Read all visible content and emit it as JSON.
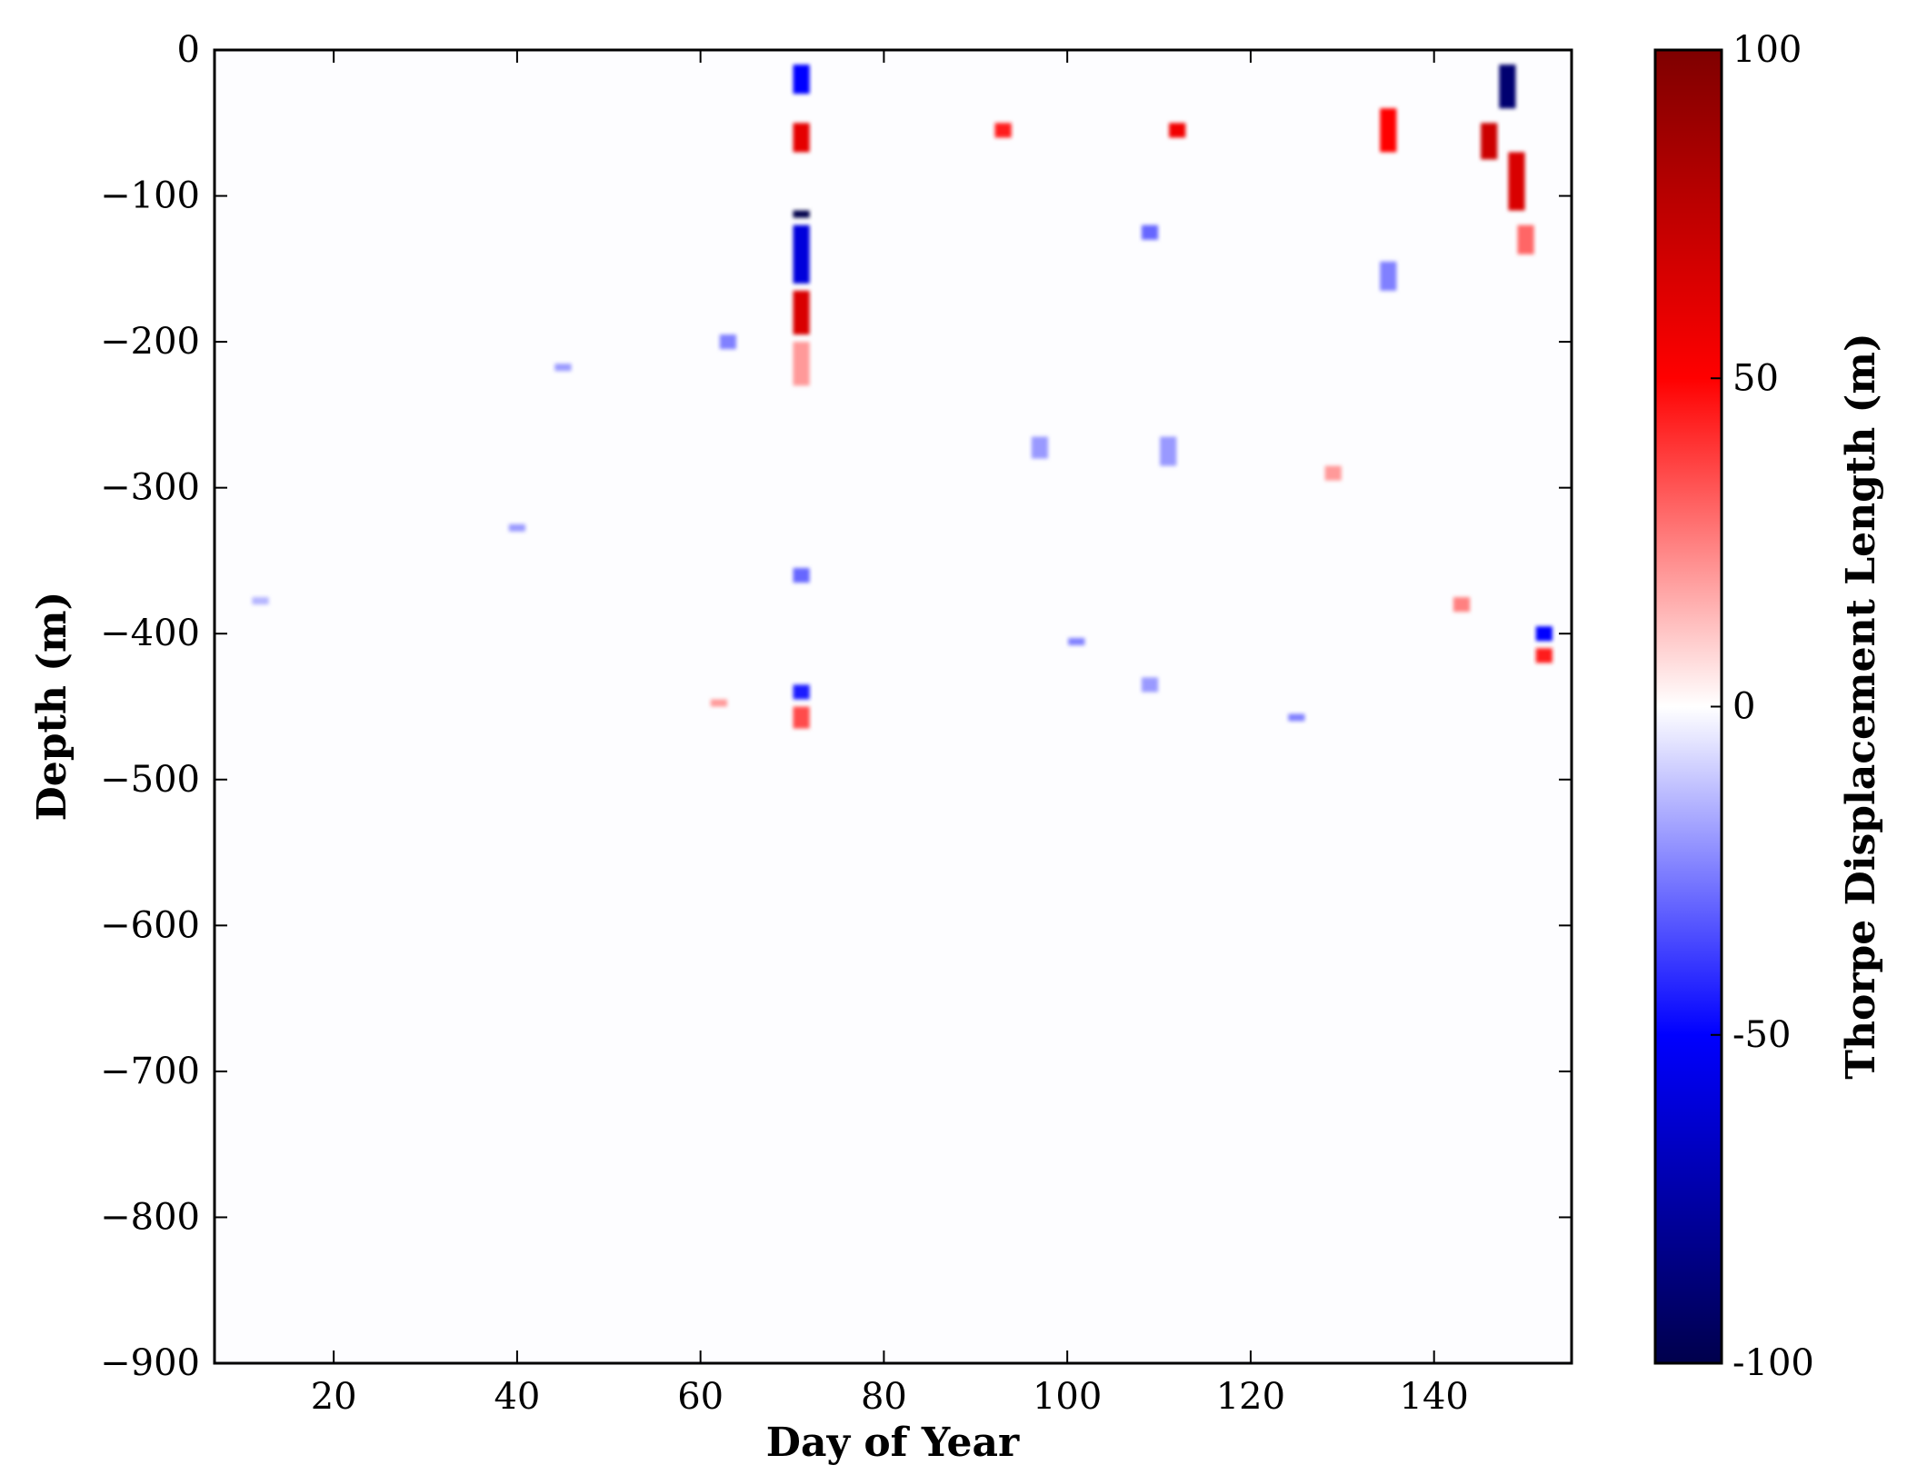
{
  "chart_data": {
    "type": "heatmap",
    "title": "",
    "xlabel": "Day of Year",
    "ylabel": "Depth (m)",
    "xlim": [
      7,
      155
    ],
    "ylim": [
      -900,
      0
    ],
    "x_ticks": [
      20,
      40,
      60,
      80,
      100,
      120,
      140
    ],
    "x_tick_labels": [
      "20",
      "40",
      "60",
      "80",
      "100",
      "120",
      "140"
    ],
    "y_ticks": [
      0,
      -100,
      -200,
      -300,
      -400,
      -500,
      -600,
      -700,
      -800,
      -900
    ],
    "y_tick_labels": [
      "0",
      "−100",
      "−200",
      "−300",
      "−400",
      "−500",
      "−600",
      "−700",
      "−800",
      "−900"
    ],
    "colorbar": {
      "label": "Thorpe Displacement Length (m)",
      "min": -100,
      "max": 100,
      "ticks": [
        100,
        50,
        0,
        -50,
        -100
      ],
      "tick_labels": [
        "100",
        "50",
        "0",
        "-50",
        "-100"
      ],
      "colormap": "seismic",
      "colors": {
        "low": "#00004c",
        "mid_low": "#0000ff",
        "zero": "#ffffff",
        "mid_high": "#ff0000",
        "high": "#7f0000"
      }
    },
    "background_value": 0,
    "features": [
      {
        "day": 71,
        "depth_top": -10,
        "depth_bottom": -30,
        "value": -50
      },
      {
        "day": 71,
        "depth_top": -50,
        "depth_bottom": -70,
        "value": 60
      },
      {
        "day": 71,
        "depth_top": -110,
        "depth_bottom": -115,
        "value": -100
      },
      {
        "day": 71,
        "depth_top": -120,
        "depth_bottom": -160,
        "value": -60
      },
      {
        "day": 71,
        "depth_top": -165,
        "depth_bottom": -195,
        "value": 65
      },
      {
        "day": 71,
        "depth_top": -200,
        "depth_bottom": -230,
        "value": 20
      },
      {
        "day": 71,
        "depth_top": -355,
        "depth_bottom": -365,
        "value": -30
      },
      {
        "day": 71,
        "depth_top": -435,
        "depth_bottom": -445,
        "value": -45
      },
      {
        "day": 71,
        "depth_top": -450,
        "depth_bottom": -465,
        "value": 35
      },
      {
        "day": 148,
        "depth_top": -10,
        "depth_bottom": -40,
        "value": -90
      },
      {
        "day": 146,
        "depth_top": -50,
        "depth_bottom": -75,
        "value": 70
      },
      {
        "day": 149,
        "depth_top": -70,
        "depth_bottom": -110,
        "value": 65
      },
      {
        "day": 150,
        "depth_top": -120,
        "depth_bottom": -140,
        "value": 30
      },
      {
        "day": 152,
        "depth_top": -395,
        "depth_bottom": -405,
        "value": -50
      },
      {
        "day": 152,
        "depth_top": -410,
        "depth_bottom": -420,
        "value": 45
      },
      {
        "day": 93,
        "depth_top": -50,
        "depth_bottom": -60,
        "value": 45
      },
      {
        "day": 112,
        "depth_top": -50,
        "depth_bottom": -60,
        "value": 55
      },
      {
        "day": 135,
        "depth_top": -40,
        "depth_bottom": -70,
        "value": 50
      },
      {
        "day": 135,
        "depth_top": -145,
        "depth_bottom": -165,
        "value": -25
      },
      {
        "day": 63,
        "depth_top": -195,
        "depth_bottom": -205,
        "value": -25
      },
      {
        "day": 97,
        "depth_top": -265,
        "depth_bottom": -280,
        "value": -20
      },
      {
        "day": 111,
        "depth_top": -265,
        "depth_bottom": -285,
        "value": -20
      },
      {
        "day": 129,
        "depth_top": -285,
        "depth_bottom": -295,
        "value": 20
      },
      {
        "day": 143,
        "depth_top": -375,
        "depth_bottom": -385,
        "value": 25
      },
      {
        "day": 109,
        "depth_top": -120,
        "depth_bottom": -130,
        "value": -30
      },
      {
        "day": 45,
        "depth_top": -215,
        "depth_bottom": -220,
        "value": -20
      },
      {
        "day": 40,
        "depth_top": -325,
        "depth_bottom": -330,
        "value": -20
      },
      {
        "day": 12,
        "depth_top": -375,
        "depth_bottom": -380,
        "value": -15
      },
      {
        "day": 101,
        "depth_top": -403,
        "depth_bottom": -408,
        "value": -25
      },
      {
        "day": 109,
        "depth_top": -430,
        "depth_bottom": -440,
        "value": -20
      },
      {
        "day": 125,
        "depth_top": -455,
        "depth_bottom": -460,
        "value": -25
      },
      {
        "day": 62,
        "depth_top": -445,
        "depth_bottom": -450,
        "value": 20
      }
    ]
  }
}
